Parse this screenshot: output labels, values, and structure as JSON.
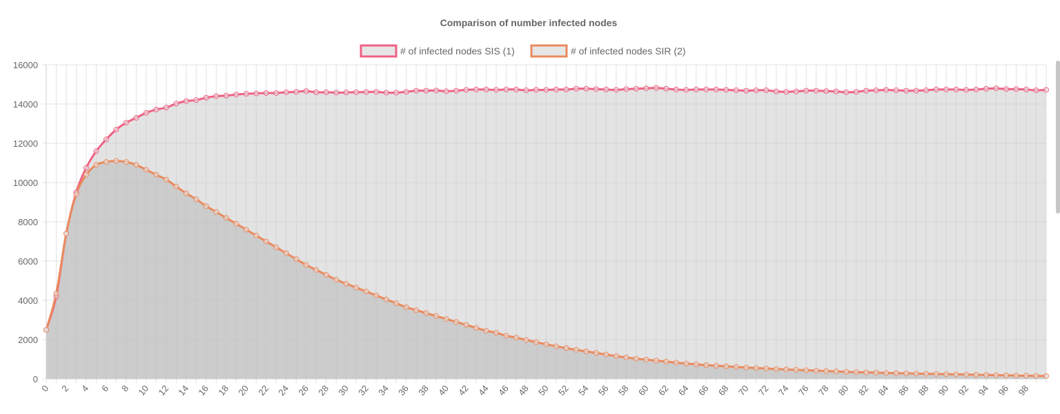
{
  "chart_data": {
    "type": "line",
    "title": "Comparison of number infected nodes",
    "xlabel": "",
    "ylabel": "",
    "x": [
      0,
      1,
      2,
      3,
      4,
      5,
      6,
      7,
      8,
      9,
      10,
      11,
      12,
      13,
      14,
      15,
      16,
      17,
      18,
      19,
      20,
      21,
      22,
      23,
      24,
      25,
      26,
      27,
      28,
      29,
      30,
      31,
      32,
      33,
      34,
      35,
      36,
      37,
      38,
      39,
      40,
      41,
      42,
      43,
      44,
      45,
      46,
      47,
      48,
      49,
      50,
      51,
      52,
      53,
      54,
      55,
      56,
      57,
      58,
      59,
      60,
      61,
      62,
      63,
      64,
      65,
      66,
      67,
      68,
      69,
      70,
      71,
      72,
      73,
      74,
      75,
      76,
      77,
      78,
      79,
      80,
      81,
      82,
      83,
      84,
      85,
      86,
      87,
      88,
      89,
      90,
      91,
      92,
      93,
      94,
      95,
      96,
      97,
      98,
      99,
      100
    ],
    "x_tick_labels": [
      "0",
      "2",
      "4",
      "6",
      "8",
      "10",
      "12",
      "14",
      "16",
      "18",
      "20",
      "22",
      "24",
      "26",
      "28",
      "30",
      "32",
      "34",
      "36",
      "38",
      "40",
      "42",
      "44",
      "46",
      "48",
      "50",
      "52",
      "54",
      "56",
      "58",
      "60",
      "62",
      "64",
      "66",
      "68",
      "70",
      "72",
      "74",
      "76",
      "78",
      "80",
      "82",
      "84",
      "86",
      "88",
      "90",
      "92",
      "94",
      "96",
      "98"
    ],
    "y_tick_labels": [
      "0",
      "2000",
      "4000",
      "6000",
      "8000",
      "10000",
      "12000",
      "14000",
      "16000"
    ],
    "ylim": [
      0,
      16000
    ],
    "grid": true,
    "legend_position": "top",
    "filled": true,
    "series": [
      {
        "name": "# of infected nodes SIS (1)",
        "color": "#ef6183",
        "fill": "rgba(200,200,200,0.5)",
        "values": [
          2500,
          4200,
          7400,
          9500,
          10750,
          11600,
          12200,
          12700,
          13050,
          13300,
          13550,
          13720,
          13820,
          14020,
          14150,
          14200,
          14320,
          14400,
          14430,
          14480,
          14520,
          14540,
          14560,
          14560,
          14600,
          14620,
          14660,
          14600,
          14600,
          14580,
          14590,
          14600,
          14610,
          14620,
          14580,
          14580,
          14620,
          14680,
          14680,
          14690,
          14650,
          14680,
          14720,
          14740,
          14740,
          14720,
          14740,
          14740,
          14700,
          14720,
          14720,
          14740,
          14740,
          14780,
          14780,
          14760,
          14740,
          14720,
          14760,
          14780,
          14800,
          14820,
          14780,
          14740,
          14720,
          14740,
          14740,
          14740,
          14720,
          14700,
          14680,
          14700,
          14700,
          14640,
          14620,
          14640,
          14680,
          14680,
          14660,
          14640,
          14600,
          14620,
          14680,
          14700,
          14720,
          14700,
          14680,
          14680,
          14700,
          14740,
          14740,
          14740,
          14720,
          14740,
          14780,
          14800,
          14760,
          14760,
          14740,
          14700,
          14720
        ]
      },
      {
        "name": "# of infected nodes SIR (2)",
        "color": "#e98a5e",
        "fill": "rgba(185,185,185,0.55)",
        "values": [
          2500,
          4350,
          7400,
          9400,
          10400,
          10900,
          11050,
          11100,
          11050,
          10900,
          10650,
          10400,
          10150,
          9800,
          9450,
          9150,
          8800,
          8500,
          8200,
          7900,
          7600,
          7300,
          7000,
          6700,
          6400,
          6100,
          5800,
          5550,
          5300,
          5050,
          4850,
          4650,
          4450,
          4250,
          4050,
          3850,
          3650,
          3500,
          3350,
          3200,
          3050,
          2900,
          2750,
          2600,
          2450,
          2350,
          2200,
          2100,
          1980,
          1870,
          1760,
          1660,
          1570,
          1480,
          1400,
          1320,
          1240,
          1160,
          1090,
          1030,
          980,
          930,
          880,
          830,
          780,
          740,
          700,
          670,
          640,
          610,
          580,
          550,
          530,
          500,
          480,
          460,
          440,
          420,
          400,
          380,
          360,
          340,
          330,
          320,
          300,
          290,
          280,
          270,
          260,
          250,
          240,
          230,
          220,
          210,
          200,
          190,
          180,
          170,
          160,
          150,
          145
        ]
      }
    ]
  }
}
